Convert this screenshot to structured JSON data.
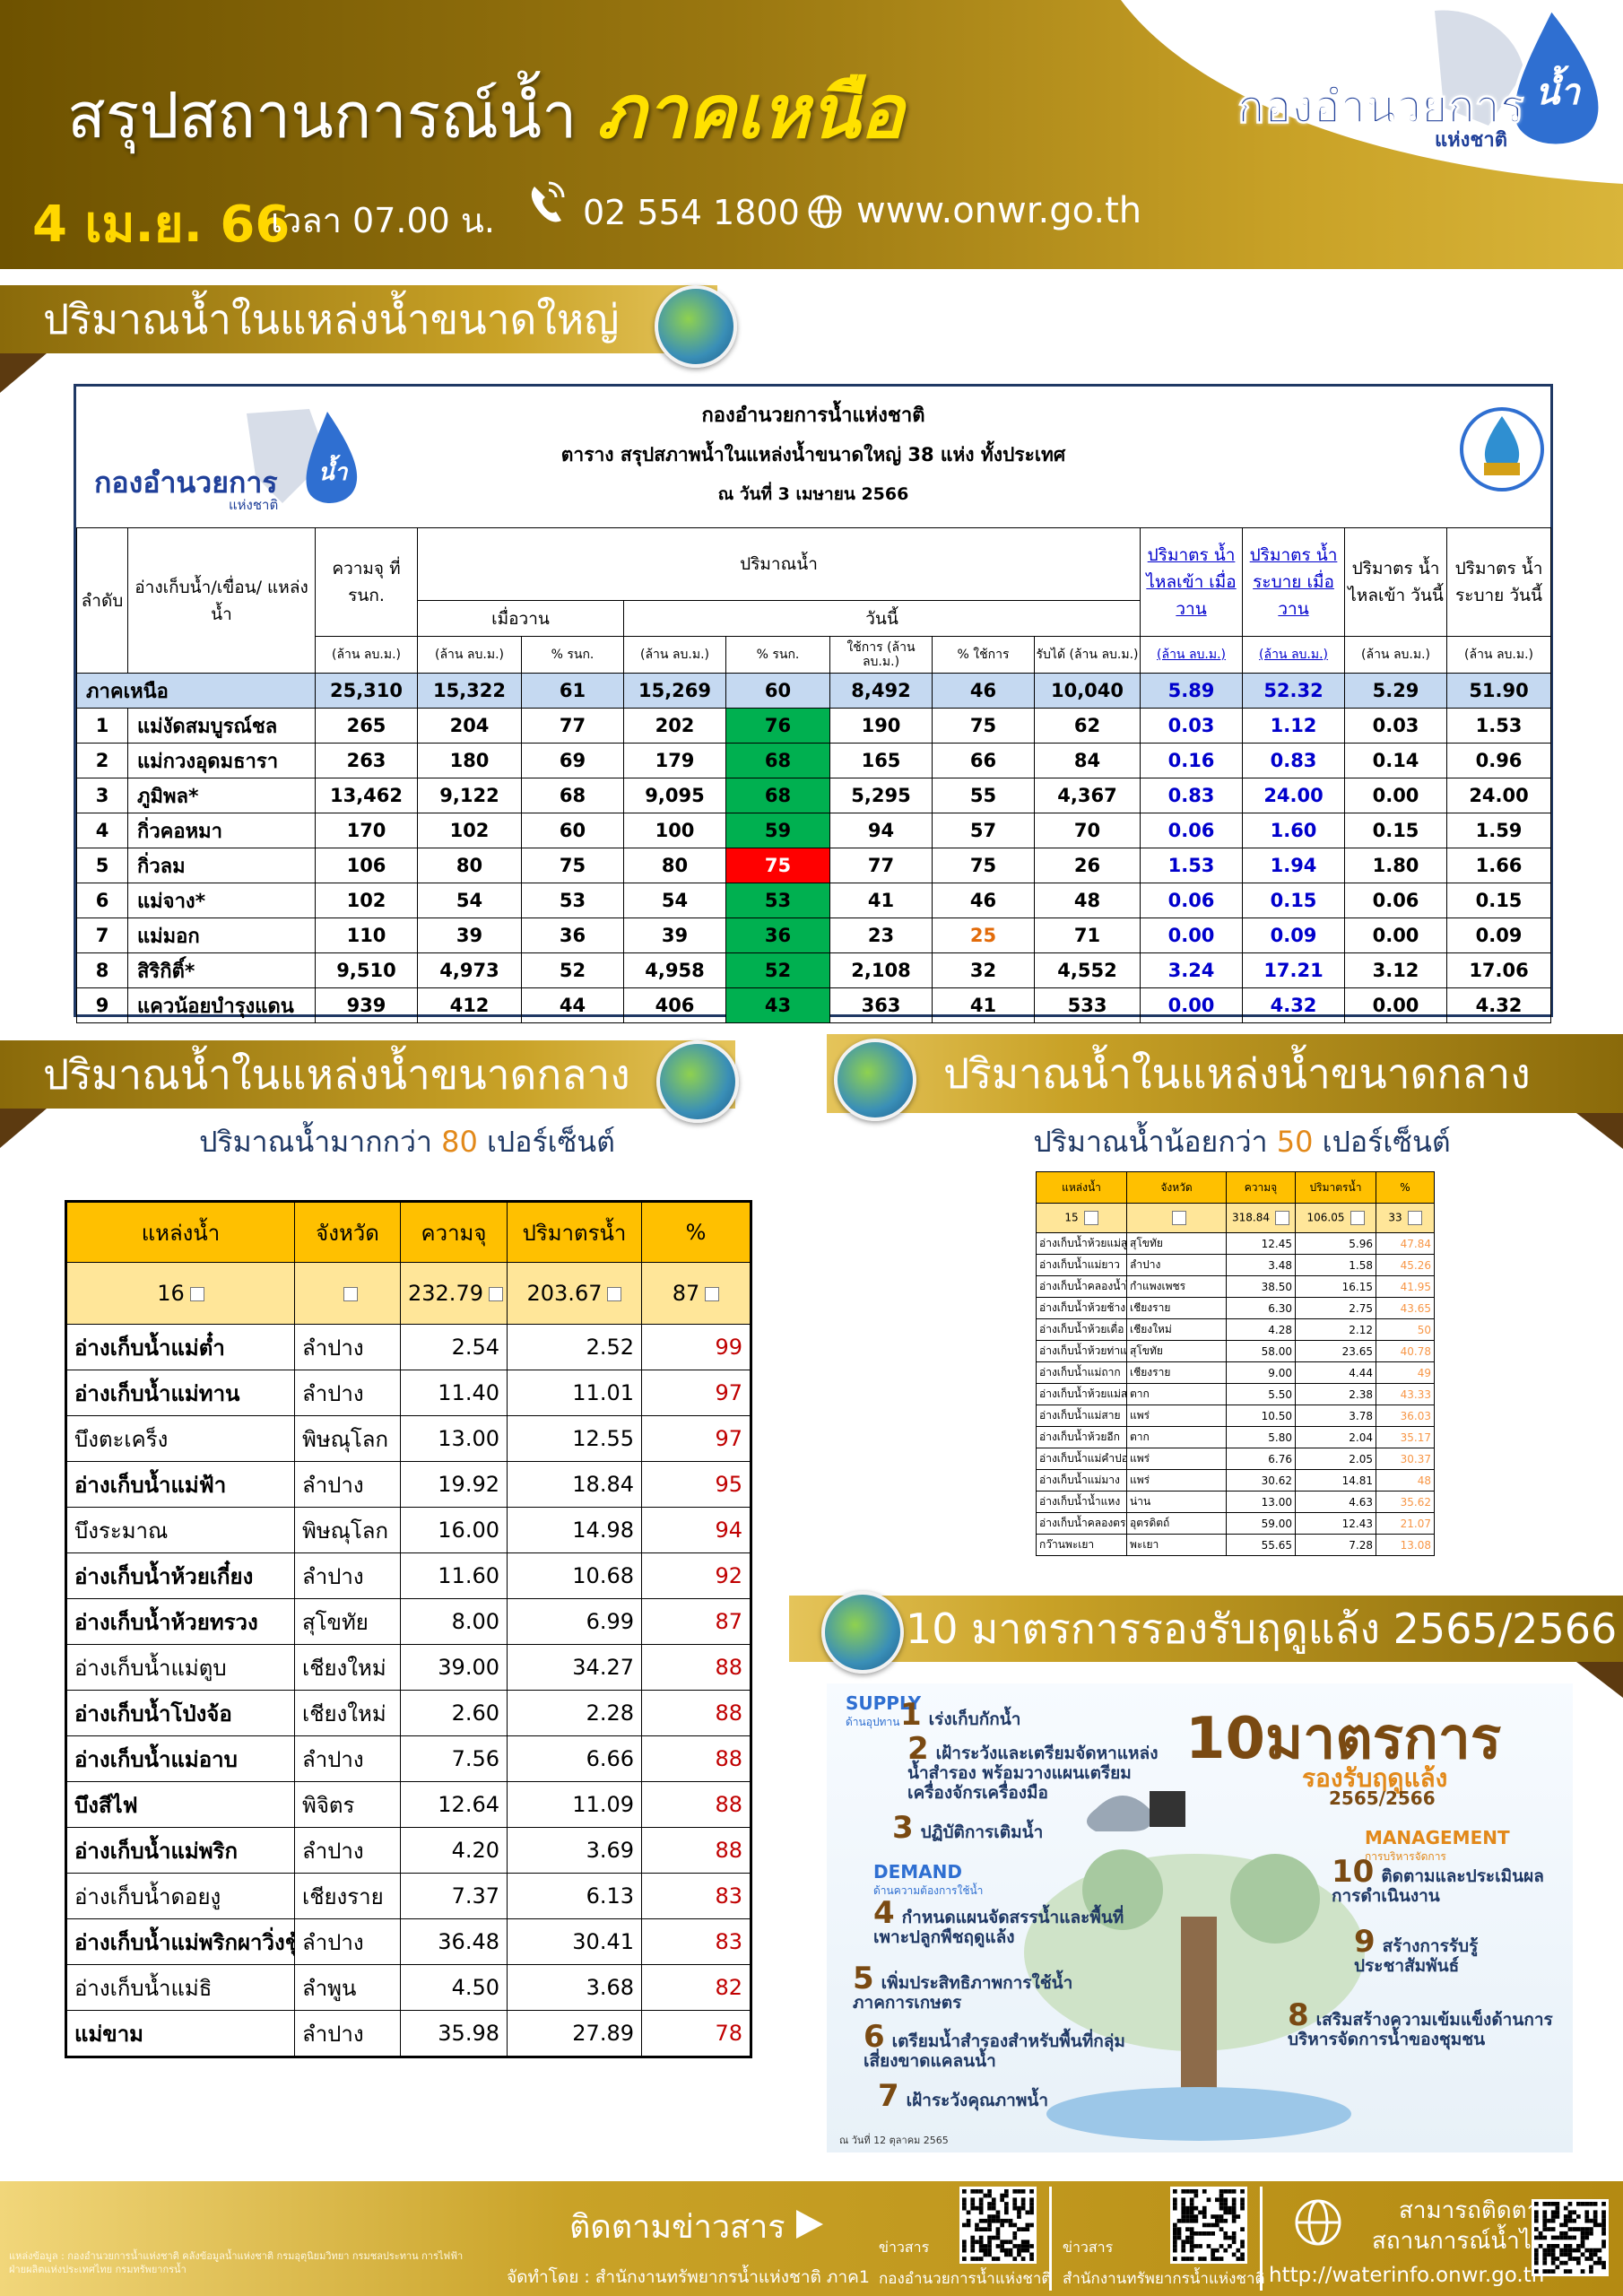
{
  "header": {
    "title": "สรุปสถานการณ์น้ำ",
    "region": "ภาคเหนือ",
    "date": "4 เม.ย. 66",
    "time": "เวลา 07.00 น.",
    "phone": "02 554 1800",
    "website": "www.onwr.go.th",
    "logo": {
      "main": "กองอำนวยการ",
      "water": "น้ำ",
      "sub": "แห่งชาติ"
    }
  },
  "large": {
    "heading": "ปริมาณน้ำในแหล่งน้ำขนาดใหญ่",
    "logo": {
      "main": "กองอำนวยการ",
      "water": "น้ำ",
      "sub": "แห่งชาติ"
    },
    "title_lines": [
      "กองอำนวยการน้ำแห่งชาติ",
      "ตาราง สรุปสภาพน้ำในแหล่งน้ำขนาดใหญ่ 38 แห่ง ทั้งประเทศ",
      "ณ วันที่ 3 เมษายน 2566"
    ],
    "header_top": [
      "ลำดับ",
      "อ่างเก็บน้ำ/เขื่อน/ แหล่งน้ำ",
      "ความจุ ที่ รนก.",
      "ปริมาณน้ำ",
      "ปริมาตร น้ำไหลเข้า เมื่อวาน",
      "ปริมาตร น้ำระบาย เมื่อวาน",
      "ปริมาตร น้ำไหลเข้า วันนี้",
      "ปริมาตร น้ำระบาย วันนี้"
    ],
    "header_mid": [
      "เมื่อวาน",
      "วันนี้"
    ],
    "header_units": [
      "(ล้าน ลบ.ม.)",
      "(ล้าน ลบ.ม.)",
      "% รนก.",
      "(ล้าน ลบ.ม.)",
      "% รนก.",
      "ใช้การ (ล้าน ลบ.ม.)",
      "% ใช้การ",
      "รับได้ (ล้าน ลบ.ม.)",
      "(ล้าน ลบ.ม.)",
      "(ล้าน ลบ.ม.)",
      "(ล้าน ลบ.ม.)",
      "(ล้าน ลบ.ม.)"
    ],
    "region": {
      "name": "ภาคเหนือ",
      "values": [
        "25,310",
        "15,322",
        "61",
        "15,269",
        "60",
        "8,492",
        "46",
        "10,040",
        "5.89",
        "52.32",
        "5.29",
        "51.90"
      ]
    },
    "rows": [
      {
        "no": "1",
        "name": "แม่งัดสมบูรณ์ชล",
        "values": [
          "265",
          "204",
          "77",
          "202",
          "76",
          "190",
          "75",
          "62",
          "0.03",
          "1.12",
          "0.03",
          "1.53"
        ],
        "pct_color": "#00b050"
      },
      {
        "no": "2",
        "name": "แม่กวงอุดมธารา",
        "values": [
          "263",
          "180",
          "69",
          "179",
          "68",
          "165",
          "66",
          "84",
          "0.16",
          "0.83",
          "0.14",
          "0.96"
        ],
        "pct_color": "#00b050"
      },
      {
        "no": "3",
        "name": "ภูมิพล*",
        "values": [
          "13,462",
          "9,122",
          "68",
          "9,095",
          "68",
          "5,295",
          "55",
          "4,367",
          "0.83",
          "24.00",
          "0.00",
          "24.00"
        ],
        "pct_color": "#00b050"
      },
      {
        "no": "4",
        "name": "กิ่วคอหมา",
        "values": [
          "170",
          "102",
          "60",
          "100",
          "59",
          "94",
          "57",
          "70",
          "0.06",
          "1.60",
          "0.15",
          "1.59"
        ],
        "pct_color": "#00b050"
      },
      {
        "no": "5",
        "name": "กิ่วลม",
        "values": [
          "106",
          "80",
          "75",
          "80",
          "75",
          "77",
          "75",
          "26",
          "1.53",
          "1.94",
          "1.80",
          "1.66"
        ],
        "pct_color": "#ff0000",
        "pct_text": "#ffffff"
      },
      {
        "no": "6",
        "name": "แม่จาง*",
        "values": [
          "102",
          "54",
          "53",
          "54",
          "53",
          "41",
          "46",
          "48",
          "0.06",
          "0.15",
          "0.06",
          "0.15"
        ],
        "pct_color": "#00b050"
      },
      {
        "no": "7",
        "name": "แม่มอก",
        "values": [
          "110",
          "39",
          "36",
          "39",
          "36",
          "23",
          "25",
          "71",
          "0.00",
          "0.09",
          "0.00",
          "0.09"
        ],
        "pct_color": "#00b050",
        "used_color": "#e26b0a"
      },
      {
        "no": "8",
        "name": "สิริกิติ์*",
        "values": [
          "9,510",
          "4,973",
          "52",
          "4,958",
          "52",
          "2,108",
          "32",
          "4,552",
          "3.24",
          "17.21",
          "3.12",
          "17.06"
        ],
        "pct_color": "#00b050"
      },
      {
        "no": "9",
        "name": "แควน้อยบำรุงแดน",
        "values": [
          "939",
          "412",
          "44",
          "406",
          "43",
          "363",
          "41",
          "533",
          "0.00",
          "4.32",
          "0.00",
          "4.32"
        ],
        "pct_color": "#00b050"
      }
    ]
  },
  "medium_high": {
    "heading": "ปริมาณน้ำในแหล่งน้ำขนาดกลาง",
    "subtitle": {
      "before": "ปริมาณน้ำมากกว่า",
      "number": "80",
      "after": "เปอร์เซ็นต์"
    },
    "columns": [
      "แหล่งน้ำ",
      "จังหวัด",
      "ความจุ",
      "ปริมาตรน้ำ",
      "%"
    ],
    "summary": {
      "count": "16",
      "capacity": "232.79",
      "volume": "203.67",
      "pct": "87"
    },
    "rows": [
      {
        "cells": [
          "อ่างเก็บน้ำแม่ต๋ำ",
          "ลำปาง",
          "2.54",
          "2.52",
          "99"
        ],
        "bold": true
      },
      {
        "cells": [
          "อ่างเก็บน้ำแม่ทาน",
          "ลำปาง",
          "11.40",
          "11.01",
          "97"
        ],
        "bold": true
      },
      {
        "cells": [
          "บึงตะเคร็ง",
          "พิษณุโลก",
          "13.00",
          "12.55",
          "97"
        ],
        "bold": false
      },
      {
        "cells": [
          "อ่างเก็บน้ำแม่ฟ้า",
          "ลำปาง",
          "19.92",
          "18.84",
          "95"
        ],
        "bold": true
      },
      {
        "cells": [
          "บึงระมาณ",
          "พิษณุโลก",
          "16.00",
          "14.98",
          "94"
        ],
        "bold": false
      },
      {
        "cells": [
          "อ่างเก็บน้ำห้วยเกี๋ยง",
          "ลำปาง",
          "11.60",
          "10.68",
          "92"
        ],
        "bold": true
      },
      {
        "cells": [
          "อ่างเก็บน้ำห้วยทรวง",
          "สุโขทัย",
          "8.00",
          "6.99",
          "87"
        ],
        "bold": true
      },
      {
        "cells": [
          "อ่างเก็บน้ำแม่ตูบ",
          "เชียงใหม่",
          "39.00",
          "34.27",
          "88"
        ],
        "bold": false
      },
      {
        "cells": [
          "อ่างเก็บน้ำโป่งจ้อ",
          "เชียงใหม่",
          "2.60",
          "2.28",
          "88"
        ],
        "bold": true
      },
      {
        "cells": [
          "อ่างเก็บน้ำแม่อาบ",
          "ลำปาง",
          "7.56",
          "6.66",
          "88"
        ],
        "bold": true
      },
      {
        "cells": [
          "บึงสีไฟ",
          "พิจิตร",
          "12.64",
          "11.09",
          "88"
        ],
        "bold": true
      },
      {
        "cells": [
          "อ่างเก็บน้ำแม่พริก",
          "ลำปาง",
          "4.20",
          "3.69",
          "88"
        ],
        "bold": true
      },
      {
        "cells": [
          "อ่างเก็บน้ำดอยงู",
          "เชียงราย",
          "7.37",
          "6.13",
          "83"
        ],
        "bold": false
      },
      {
        "cells": [
          "อ่างเก็บน้ำแม่พริกผาวิ่งชู้",
          "ลำปาง",
          "36.48",
          "30.41",
          "83"
        ],
        "bold": true
      },
      {
        "cells": [
          "อ่างเก็บน้ำแม่ธิ",
          "ลำพูน",
          "4.50",
          "3.68",
          "82"
        ],
        "bold": false
      },
      {
        "cells": [
          "แม่ขาม",
          "ลำปาง",
          "35.98",
          "27.89",
          "78"
        ],
        "bold": true
      }
    ]
  },
  "medium_low": {
    "heading": "ปริมาณน้ำในแหล่งน้ำขนาดกลาง",
    "subtitle": {
      "before": "ปริมาณน้ำน้อยกว่า",
      "number": "50",
      "after": "เปอร์เซ็นต์"
    },
    "columns": [
      "แหล่งน้ำ",
      "จังหวัด",
      "ความจุ",
      "ปริมาตรน้ำ",
      "%"
    ],
    "summary": {
      "count": "15",
      "capacity": "318.84",
      "volume": "106.05",
      "pct": "33"
    },
    "rows": [
      {
        "cells": [
          "อ่างเก็บน้ำห้วยแม่สูง",
          "สุโขทัย",
          "12.45",
          "5.96",
          "47.84"
        ]
      },
      {
        "cells": [
          "อ่างเก็บน้ำแม่ยาว",
          "ลำปาง",
          "3.48",
          "1.58",
          "45.26"
        ]
      },
      {
        "cells": [
          "อ่างเก็บน้ำคลองน้ำไหล",
          "กำแพงเพชร",
          "38.50",
          "16.15",
          "41.95"
        ]
      },
      {
        "cells": [
          "อ่างเก็บน้ำห้วยช้าง",
          "เชียงราย",
          "6.30",
          "2.75",
          "43.65"
        ]
      },
      {
        "cells": [
          "อ่างเก็บน้ำห้วยเดื่อ",
          "เชียงใหม่",
          "4.28",
          "2.12",
          "50"
        ]
      },
      {
        "cells": [
          "อ่างเก็บน้ำห้วยท่าแพ",
          "สุโขทัย",
          "58.00",
          "23.65",
          "40.78"
        ]
      },
      {
        "cells": [
          "อ่างเก็บน้ำแม่ถาก",
          "เชียงราย",
          "9.00",
          "4.44",
          "49"
        ]
      },
      {
        "cells": [
          "อ่างเก็บน้ำห้วยแม่สอด",
          "ตาก",
          "5.50",
          "2.38",
          "43.33"
        ]
      },
      {
        "cells": [
          "อ่างเก็บน้ำแม่สาย",
          "แพร่",
          "10.50",
          "3.78",
          "36.03"
        ]
      },
      {
        "cells": [
          "อ่างเก็บน้ำห้วยอีก",
          "ตาก",
          "5.80",
          "2.04",
          "35.17"
        ]
      },
      {
        "cells": [
          "อ่างเก็บน้ำแม่คำปอง",
          "แพร่",
          "6.76",
          "2.05",
          "30.37"
        ]
      },
      {
        "cells": [
          "อ่างเก็บน้ำแม่มาง",
          "แพร่",
          "30.62",
          "14.81",
          "48"
        ]
      },
      {
        "cells": [
          "อ่างเก็บน้ำน้ำแหง",
          "น่าน",
          "13.00",
          "4.63",
          "35.62"
        ]
      },
      {
        "cells": [
          "อ่างเก็บน้ำคลองตรอน",
          "อุตรดิตถ์",
          "59.00",
          "12.43",
          "21.07"
        ]
      },
      {
        "cells": [
          "กว๊านพะเยา",
          "พะเยา",
          "55.65",
          "7.28",
          "13.08"
        ]
      }
    ]
  },
  "measures": {
    "heading": "10 มาตรการรองรับฤดูแล้ง 2565/2566",
    "poster": {
      "title": "10มาตรการ",
      "subtitle": "รองรับฤดูแล้ง",
      "year": "2565/2566",
      "supply": "SUPPLY",
      "supply_sub": "ด้านอุปทาน",
      "demand": "DEMAND",
      "demand_sub": "ด้านความต้องการใช้น้ำ",
      "management": "MANAGEMENT",
      "management_sub": "การบริหารจัดการ",
      "items": [
        {
          "no": "1",
          "text": "เร่งเก็บกักน้ำ"
        },
        {
          "no": "2",
          "text": "เฝ้าระวังและเตรียมจัดหาแหล่งน้ำสำรอง พร้อมวางแผนเตรียมเครื่องจักรเครื่องมือ"
        },
        {
          "no": "3",
          "text": "ปฏิบัติการเติมน้ำ"
        },
        {
          "no": "4",
          "text": "กำหนดแผนจัดสรรน้ำและพื้นที่เพาะปลูกพืชฤดูแล้ง"
        },
        {
          "no": "5",
          "text": "เพิ่มประสิทธิภาพการใช้น้ำภาคการเกษตร"
        },
        {
          "no": "6",
          "text": "เตรียมน้ำสำรองสำหรับพื้นที่กลุ่มเสี่ยงขาดแคลนน้ำ"
        },
        {
          "no": "7",
          "text": "เฝ้าระวังคุณภาพน้ำ"
        },
        {
          "no": "8",
          "text": "เสริมสร้างความเข้มแข็งด้านการบริหารจัดการน้ำของชุมชน"
        },
        {
          "no": "9",
          "text": "สร้างการรับรู้ประชาสัมพันธ์"
        },
        {
          "no": "10",
          "text": "ติดตามและประเมินผลการดำเนินงาน"
        }
      ],
      "date": "ณ วันที่ 12 ตุลาคม 2565"
    }
  },
  "footer": {
    "source": "แหล่งข้อมูล : กองอำนวยการน้ำแห่งชาติ คลังข้อมูลน้ำแห่งชาติ กรมอุตุนิยมวิทยา กรมชลประทาน การไฟฟ้าฝ่ายผลิตแห่งประเทศไทย กรมทรัพยากรน้ำ",
    "follow": "ติดตามข่าวสาร",
    "made_by": "จัดทำโดย : สำนักงานทรัพยากรน้ำแห่งชาติ ภาค1",
    "news1": {
      "label": "ข่าวสาร",
      "org": "กองอำนวยการน้ำแห่งชาติ"
    },
    "news2": {
      "label": "ข่าวสาร",
      "org": "สำนักงานทรัพยากรน้ำแห่งชาติ"
    },
    "track_lines": [
      "สามารถติดตาม",
      "สถานการณ์น้ำได้ที่"
    ],
    "url": "http://waterinfo.onwr.go.th"
  }
}
